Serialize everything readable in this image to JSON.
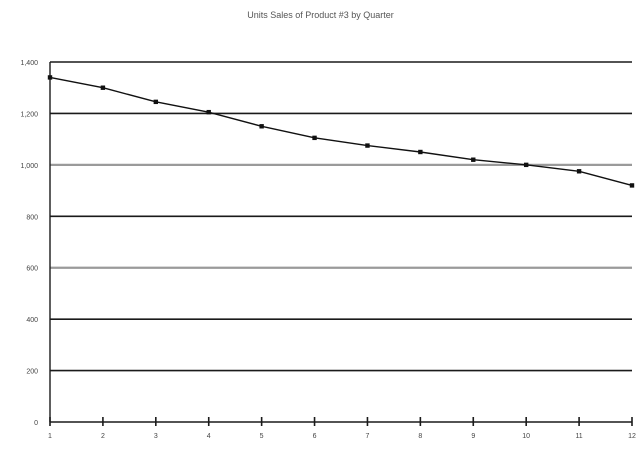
{
  "chart_data": {
    "type": "line",
    "title": "Units Sales of Product #3 by Quarter",
    "xlabel": "",
    "ylabel": "",
    "x": [
      1,
      2,
      3,
      4,
      5,
      6,
      7,
      8,
      9,
      10,
      11,
      12
    ],
    "series": [
      {
        "values": [
          1340,
          1300,
          1245,
          1205,
          1150,
          1105,
          1075,
          1050,
          1020,
          1000,
          975,
          920
        ]
      }
    ],
    "ylim": [
      0,
      1400
    ],
    "xlim": [
      1,
      12
    ],
    "yticks": [
      0,
      200,
      400,
      600,
      800,
      1000,
      1200,
      1400
    ],
    "ytick_labels": [
      "0",
      "200",
      "400",
      "600",
      "800",
      "1,000",
      "1,200",
      "1,400"
    ],
    "xticks": [
      1,
      2,
      3,
      4,
      5,
      6,
      7,
      8,
      9,
      10,
      11,
      12
    ],
    "xtick_labels": [
      "1",
      "2",
      "3",
      "4",
      "5",
      "6",
      "7",
      "8",
      "9",
      "10",
      "11",
      "12"
    ],
    "grid": true,
    "legend": "none",
    "colors": {
      "line": "#111111",
      "marker": "#111111",
      "grid": "#1a1a1a",
      "grid_light": "#9a9a9a",
      "text": "#444444"
    }
  }
}
